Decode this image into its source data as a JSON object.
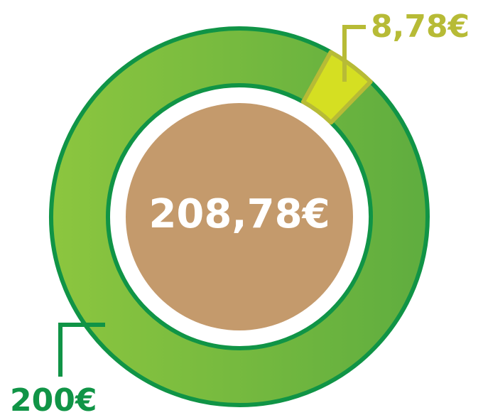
{
  "chart_data": {
    "type": "donut",
    "categories": [
      null,
      null
    ],
    "values": [
      200,
      8.78
    ],
    "value_labels": [
      "200€",
      "8,78€"
    ],
    "colors": [
      "#78bb42",
      "#d5df22"
    ],
    "total_label": "208,78€"
  }
}
